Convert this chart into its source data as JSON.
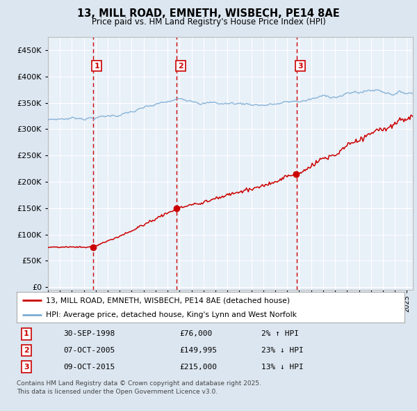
{
  "title_line1": "13, MILL ROAD, EMNETH, WISBECH, PE14 8AE",
  "title_line2": "Price paid vs. HM Land Registry's House Price Index (HPI)",
  "legend_label1": "13, MILL ROAD, EMNETH, WISBECH, PE14 8AE (detached house)",
  "legend_label2": "HPI: Average price, detached house, King's Lynn and West Norfolk",
  "sale1_date": "30-SEP-1998",
  "sale1_price": 76000,
  "sale1_hpi": "2% ↑ HPI",
  "sale2_date": "07-OCT-2005",
  "sale2_price": 149995,
  "sale2_hpi": "23% ↓ HPI",
  "sale3_date": "09-OCT-2015",
  "sale3_price": 215000,
  "sale3_hpi": "13% ↓ HPI",
  "footer": "Contains HM Land Registry data © Crown copyright and database right 2025.\nThis data is licensed under the Open Government Licence v3.0.",
  "red_line_color": "#cc0000",
  "blue_line_color": "#7dadd4",
  "background_color": "#dce6f0",
  "plot_bg_color": "#e8f0f8",
  "grid_color": "#ffffff",
  "vline_color": "#cc0000",
  "box_color": "#cc0000",
  "ylim_max": 475000,
  "ylim_min": -5000,
  "start_year": 1995.0,
  "end_year": 2025.5
}
